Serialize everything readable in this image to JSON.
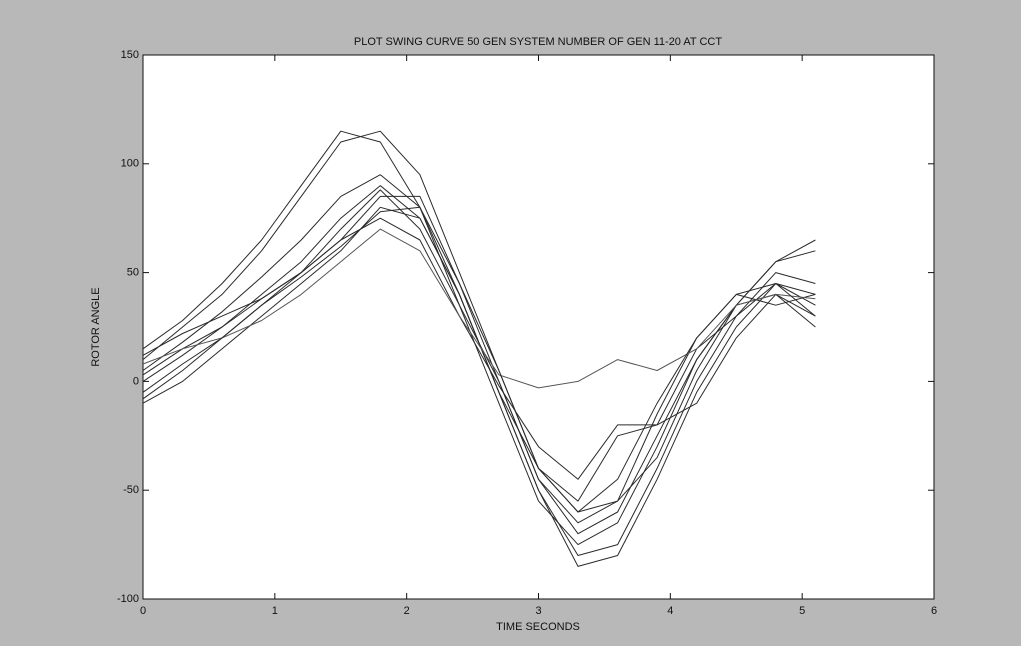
{
  "chart_data": {
    "type": "line",
    "title": "PLOT SWING CURVE 50 GEN SYSTEM NUMBER OF GEN 11-20 AT CCT",
    "x_label": "TIME SECONDS",
    "y_label": "ROTOR ANGLE",
    "x": [
      0,
      0.3,
      0.6,
      0.9,
      1.2,
      1.5,
      1.8,
      2.1,
      2.4,
      2.7,
      3.0,
      3.3,
      3.6,
      3.9,
      4.2,
      4.5,
      4.8,
      5.1
    ],
    "series": [
      {
        "color": "#2a2a2a",
        "values": [
          15,
          28,
          45,
          65,
          90,
          115,
          110,
          80,
          35,
          -10,
          -55,
          -75,
          -65,
          -30,
          10,
          35,
          55,
          60
        ]
      },
      {
        "color": "#2a2a2a",
        "values": [
          10,
          25,
          40,
          60,
          85,
          110,
          115,
          95,
          50,
          5,
          -40,
          -60,
          -55,
          -35,
          5,
          35,
          55,
          65
        ]
      },
      {
        "color": "#2a2a2a",
        "values": [
          5,
          18,
          32,
          48,
          65,
          85,
          95,
          80,
          40,
          -5,
          -50,
          -80,
          -75,
          -40,
          0,
          30,
          50,
          45
        ]
      },
      {
        "color": "#2a2a2a",
        "values": [
          0,
          12,
          25,
          40,
          55,
          75,
          90,
          75,
          40,
          -5,
          -50,
          -85,
          -80,
          -45,
          -5,
          25,
          45,
          40
        ]
      },
      {
        "color": "#2a2a2a",
        "values": [
          -5,
          8,
          20,
          35,
          50,
          65,
          85,
          85,
          45,
          0,
          -45,
          -70,
          -60,
          -25,
          10,
          35,
          40,
          30
        ]
      },
      {
        "color": "#2a2a2a",
        "values": [
          -10,
          0,
          15,
          30,
          45,
          60,
          80,
          75,
          40,
          -5,
          -40,
          -55,
          -25,
          -20,
          -10,
          20,
          40,
          25
        ]
      },
      {
        "color": "#2a2a2a",
        "values": [
          3,
          15,
          25,
          38,
          50,
          70,
          88,
          70,
          35,
          0,
          -45,
          -65,
          -55,
          -15,
          20,
          40,
          35,
          40
        ]
      },
      {
        "color": "#2a2a2a",
        "values": [
          12,
          22,
          30,
          38,
          50,
          65,
          75,
          65,
          30,
          -2,
          -30,
          -45,
          -20,
          -20,
          15,
          30,
          45,
          35
        ]
      },
      {
        "color": "#555555",
        "values": [
          8,
          15,
          20,
          28,
          40,
          55,
          70,
          60,
          30,
          3,
          -3,
          0,
          10,
          5,
          15,
          35,
          40,
          38
        ]
      },
      {
        "color": "#2a2a2a",
        "values": [
          -8,
          5,
          20,
          35,
          48,
          62,
          78,
          80,
          45,
          5,
          -40,
          -60,
          -45,
          -10,
          20,
          40,
          45,
          30
        ]
      }
    ],
    "xlim": [
      0,
      6
    ],
    "xticks": [
      0,
      1,
      2,
      3,
      4,
      5,
      6
    ],
    "ylim": [
      -100,
      150
    ],
    "yticks": [
      -100,
      -50,
      0,
      50,
      100,
      150
    ],
    "grid": false
  }
}
